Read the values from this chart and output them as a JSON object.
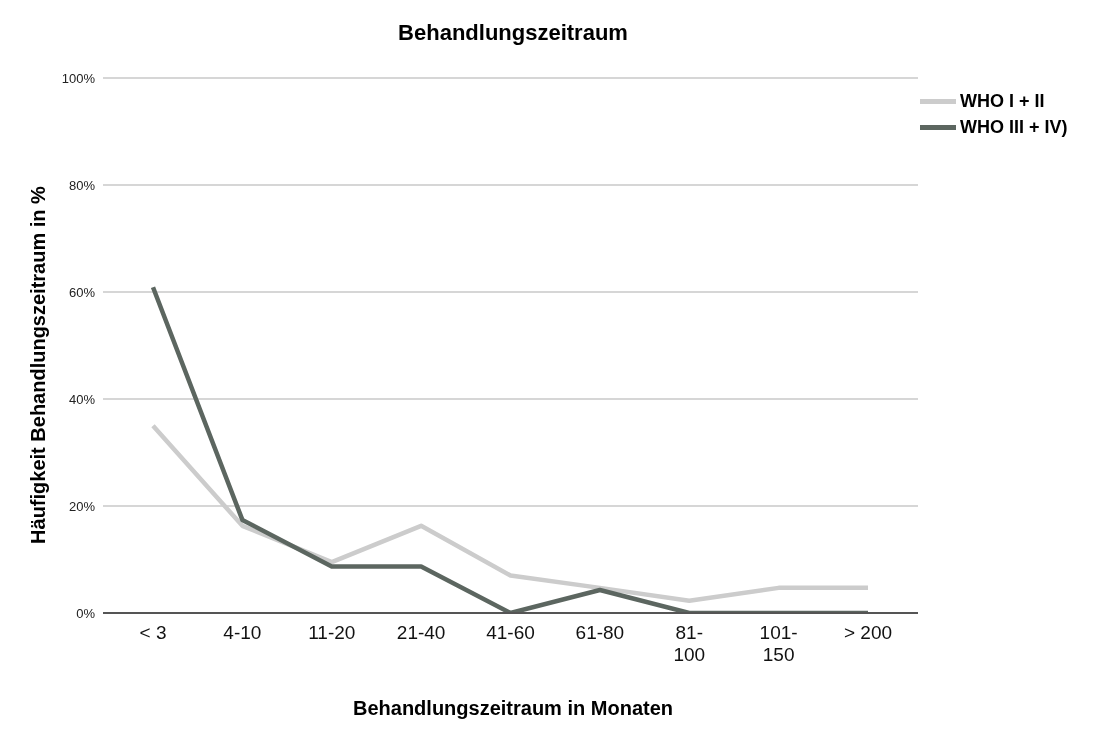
{
  "chart_data": {
    "type": "line",
    "title": "Behandlungszeitraum",
    "xlabel": "Behandlungszeitraum in Monaten",
    "ylabel": "Häufigkeit Behandlungszeitraum in %",
    "categories": [
      "< 3",
      "4-10",
      "11-20",
      "21-40",
      "41-60",
      "61-80",
      "81-100",
      "101-150",
      "> 200"
    ],
    "series": [
      {
        "name": "WHO I + II",
        "color": "#cccccc",
        "values": [
          35,
          16.3,
          9.5,
          16.3,
          7,
          4.7,
          2.3,
          4.7,
          4.7
        ]
      },
      {
        "name": "WHO III + IV)",
        "color": "#5c6660",
        "values": [
          60.9,
          17.4,
          8.7,
          8.7,
          0,
          4.3,
          0,
          0,
          0
        ]
      }
    ],
    "ylim": [
      0,
      100
    ],
    "yticks": [
      {
        "value": 0,
        "label": "0%"
      },
      {
        "value": 20,
        "label": "20%"
      },
      {
        "value": 40,
        "label": "40%"
      },
      {
        "value": 60,
        "label": "60%"
      },
      {
        "value": 80,
        "label": "80%"
      },
      {
        "value": 100,
        "label": "100%"
      }
    ],
    "grid": "y",
    "legend": "top right",
    "marker": "none",
    "line_style": "solid"
  }
}
